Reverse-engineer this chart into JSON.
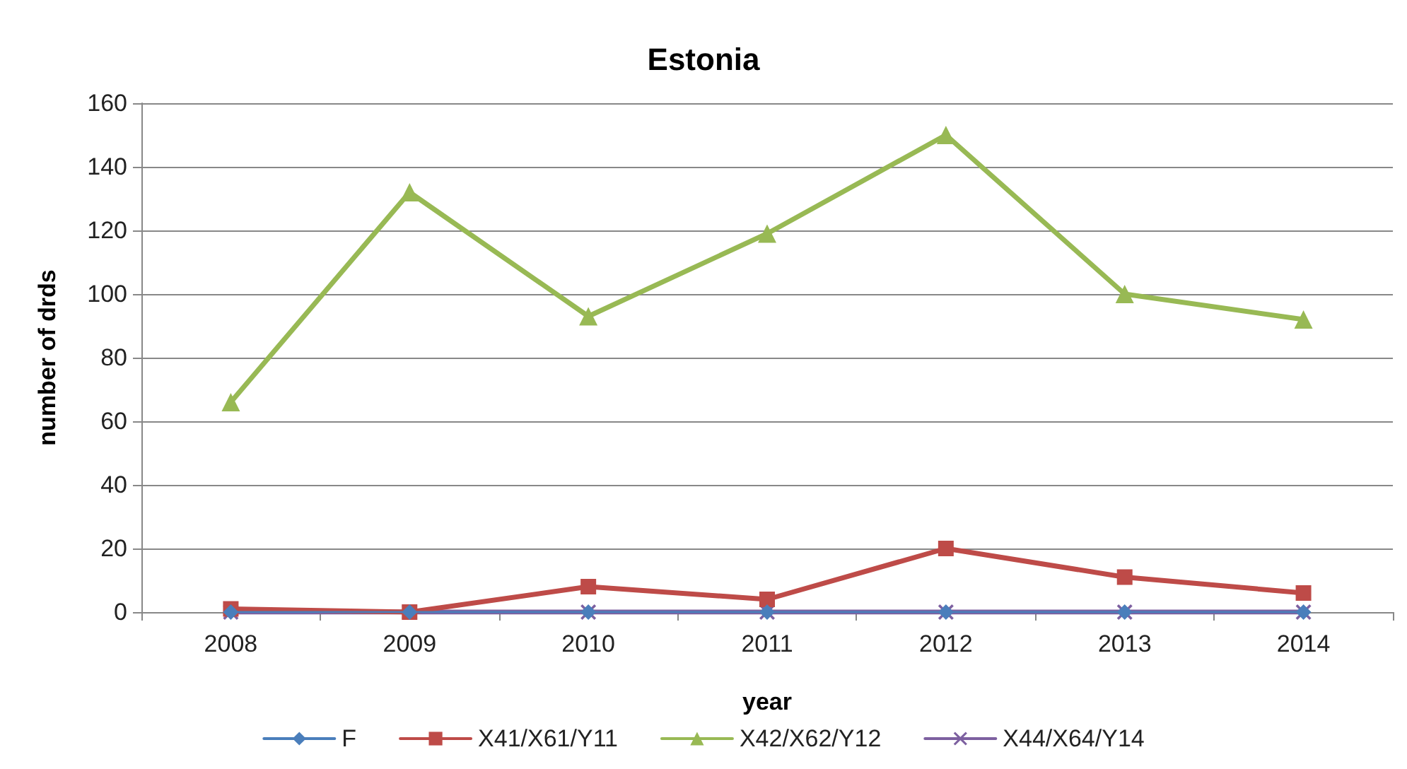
{
  "chart_data": {
    "type": "line",
    "title": "Estonia",
    "xlabel": "year",
    "ylabel": "number of drds",
    "categories": [
      "2008",
      "2009",
      "2010",
      "2011",
      "2012",
      "2013",
      "2014"
    ],
    "series": [
      {
        "name": "F",
        "color": "#4a7ebb",
        "marker": "diamond",
        "values": [
          0,
          0,
          0,
          0,
          0,
          0,
          0
        ]
      },
      {
        "name": "X41/X61/Y11",
        "color": "#be4b48",
        "marker": "square",
        "values": [
          1,
          0,
          8,
          4,
          20,
          11,
          6
        ]
      },
      {
        "name": "X42/X62/Y12",
        "color": "#98b954",
        "marker": "triangle",
        "values": [
          66,
          132,
          93,
          119,
          150,
          100,
          92
        ]
      },
      {
        "name": "X44/X64/Y14",
        "color": "#7d60a0",
        "marker": "cross",
        "values": [
          0,
          0,
          0,
          0,
          0,
          0,
          0
        ]
      }
    ],
    "ylim": [
      0,
      160
    ],
    "yticks": [
      0,
      20,
      40,
      60,
      80,
      100,
      120,
      140,
      160
    ],
    "grid": "y",
    "legend": "bottom"
  }
}
